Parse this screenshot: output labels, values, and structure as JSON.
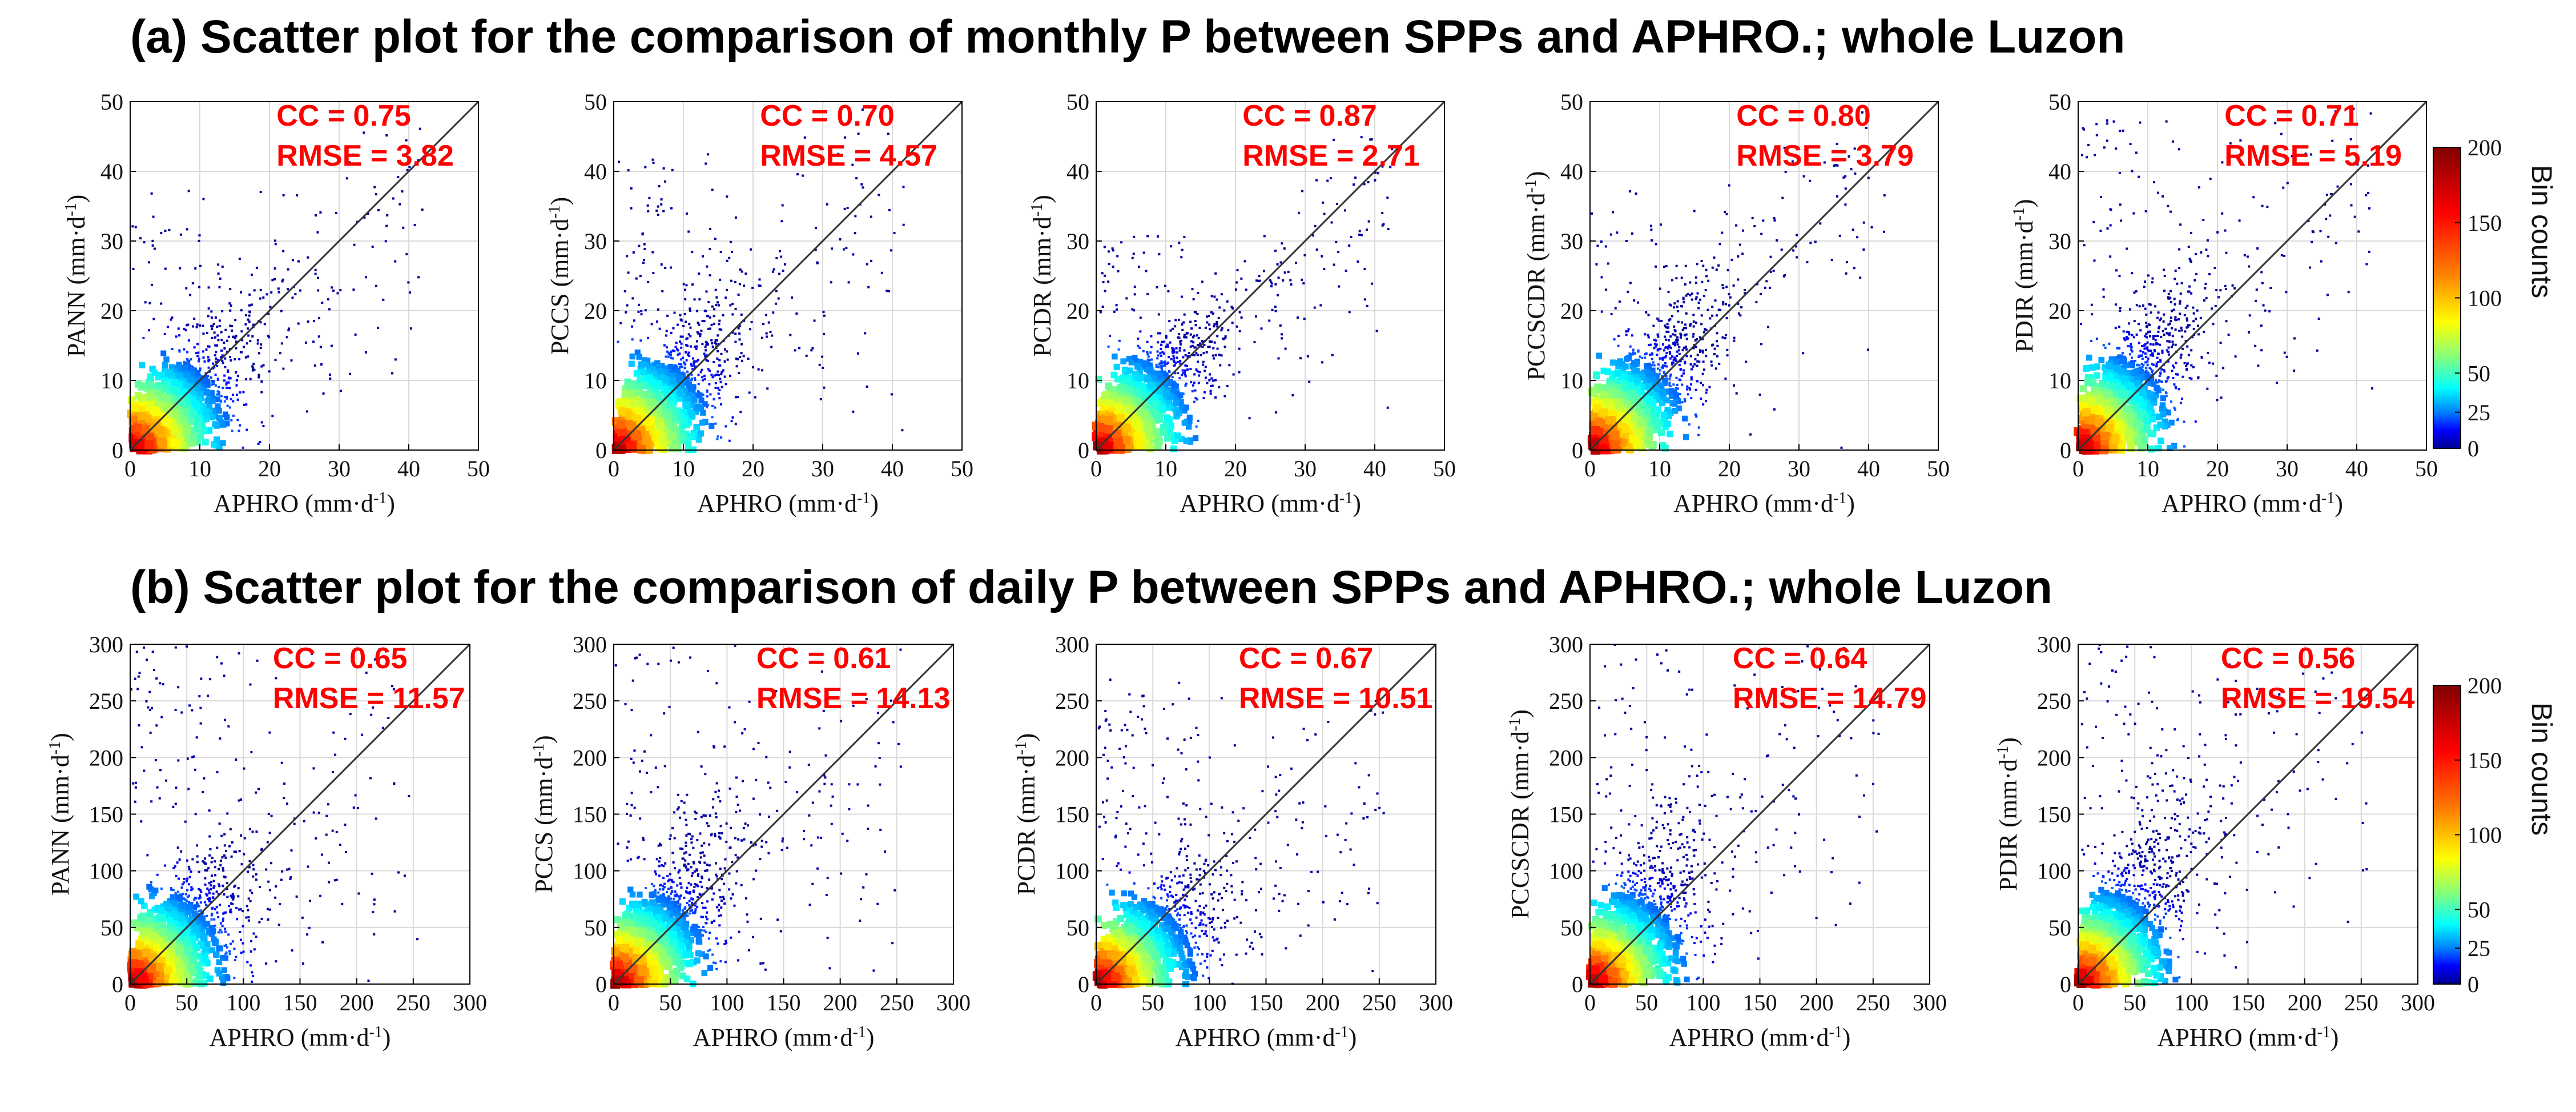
{
  "figure": {
    "panel_a_title": "(a) Scatter plot for the comparison of monthly P between SPPs and APHRO.; whole Luzon",
    "panel_b_title": "(b) Scatter plot for the comparison of daily P between SPPs and APHRO.; whole Luzon"
  },
  "chart_data": [
    {
      "type": "heatmap",
      "row": "a",
      "kind": "density-scatter",
      "xlabel": "APHRO (mm·d-1)",
      "ylabel": "PANN (mm·d-1)",
      "xlim": [
        0,
        50
      ],
      "ylim": [
        0,
        50
      ],
      "xticks": [
        0,
        10,
        20,
        30,
        40,
        50
      ],
      "yticks": [
        0,
        10,
        20,
        30,
        40,
        50
      ],
      "cc_text": "CC = 0.75",
      "rmse_text": "RMSE = 3.82",
      "cc": 0.75,
      "rmse": 3.82,
      "spread": 0.35,
      "slope": 0.85,
      "maxv": 50
    },
    {
      "type": "heatmap",
      "row": "a",
      "kind": "density-scatter",
      "xlabel": "APHRO (mm·d-1)",
      "ylabel": "PCCS (mm·d-1)",
      "xlim": [
        0,
        50
      ],
      "ylim": [
        0,
        50
      ],
      "xticks": [
        0,
        10,
        20,
        30,
        40,
        50
      ],
      "yticks": [
        0,
        10,
        20,
        30,
        40,
        50
      ],
      "cc_text": "CC = 0.70",
      "rmse_text": "RMSE = 4.57",
      "cc": 0.7,
      "rmse": 4.57,
      "spread": 0.45,
      "slope": 0.95,
      "maxv": 50
    },
    {
      "type": "heatmap",
      "row": "a",
      "kind": "density-scatter",
      "xlabel": "APHRO (mm·d-1)",
      "ylabel": "PCDR (mm·d-1)",
      "xlim": [
        0,
        50
      ],
      "ylim": [
        0,
        50
      ],
      "xticks": [
        0,
        10,
        20,
        30,
        40,
        50
      ],
      "yticks": [
        0,
        10,
        20,
        30,
        40,
        50
      ],
      "cc_text": "CC = 0.87",
      "rmse_text": "RMSE = 2.71",
      "cc": 0.87,
      "rmse": 2.71,
      "spread": 0.22,
      "slope": 0.9,
      "maxv": 50
    },
    {
      "type": "heatmap",
      "row": "a",
      "kind": "density-scatter",
      "xlabel": "APHRO (mm·d-1)",
      "ylabel": "PCCSCDR (mm·d-1)",
      "xlim": [
        0,
        50
      ],
      "ylim": [
        0,
        50
      ],
      "xticks": [
        0,
        10,
        20,
        30,
        40,
        50
      ],
      "yticks": [
        0,
        10,
        20,
        30,
        40,
        50
      ],
      "cc_text": "CC = 0.80",
      "rmse_text": "RMSE = 3.79",
      "cc": 0.8,
      "rmse": 3.79,
      "spread": 0.35,
      "slope": 1.0,
      "maxv": 50
    },
    {
      "type": "heatmap",
      "row": "a",
      "kind": "density-scatter",
      "xlabel": "APHRO (mm·d-1)",
      "ylabel": "PDIR (mm·d-1)",
      "xlim": [
        0,
        50
      ],
      "ylim": [
        0,
        50
      ],
      "xticks": [
        0,
        10,
        20,
        30,
        40,
        50
      ],
      "yticks": [
        0,
        10,
        20,
        30,
        40,
        50
      ],
      "cc_text": "CC = 0.71",
      "rmse_text": "RMSE = 5.19",
      "cc": 0.71,
      "rmse": 5.19,
      "spread": 0.55,
      "slope": 1.05,
      "maxv": 50
    },
    {
      "type": "heatmap",
      "row": "b",
      "kind": "density-scatter",
      "xlabel": "APHRO (mm·d-1)",
      "ylabel": "PANN (mm·d-1)",
      "xlim": [
        0,
        300
      ],
      "ylim": [
        0,
        300
      ],
      "xticks": [
        0,
        50,
        100,
        150,
        200,
        250,
        300
      ],
      "yticks": [
        0,
        50,
        100,
        150,
        200,
        250,
        300
      ],
      "cc_text": "CC = 0.65",
      "rmse_text": "RMSE = 11.57",
      "cc": 0.65,
      "rmse": 11.57,
      "spread": 0.6,
      "slope": 0.8,
      "maxv": 300
    },
    {
      "type": "heatmap",
      "row": "b",
      "kind": "density-scatter",
      "xlabel": "APHRO (mm·d-1)",
      "ylabel": "PCCS (mm·d-1)",
      "xlim": [
        0,
        300
      ],
      "ylim": [
        0,
        300
      ],
      "xticks": [
        0,
        50,
        100,
        150,
        200,
        250,
        300
      ],
      "yticks": [
        0,
        50,
        100,
        150,
        200,
        250,
        300
      ],
      "cc_text": "CC = 0.61",
      "rmse_text": "RMSE = 14.13",
      "cc": 0.61,
      "rmse": 14.13,
      "spread": 0.75,
      "slope": 1.0,
      "maxv": 300
    },
    {
      "type": "heatmap",
      "row": "b",
      "kind": "density-scatter",
      "xlabel": "APHRO (mm·d-1)",
      "ylabel": "PCDR (mm·d-1)",
      "xlim": [
        0,
        300
      ],
      "ylim": [
        0,
        300
      ],
      "xticks": [
        0,
        50,
        100,
        150,
        200,
        250,
        300
      ],
      "yticks": [
        0,
        50,
        100,
        150,
        200,
        250,
        300
      ],
      "cc_text": "CC = 0.67",
      "rmse_text": "RMSE = 10.51",
      "cc": 0.67,
      "rmse": 10.51,
      "spread": 0.5,
      "slope": 0.6,
      "maxv": 300
    },
    {
      "type": "heatmap",
      "row": "b",
      "kind": "density-scatter",
      "xlabel": "APHRO (mm·d-1)",
      "ylabel": "PCCSCDR (mm·d-1)",
      "xlim": [
        0,
        300
      ],
      "ylim": [
        0,
        300
      ],
      "xticks": [
        0,
        50,
        100,
        150,
        200,
        250,
        300
      ],
      "yticks": [
        0,
        50,
        100,
        150,
        200,
        250,
        300
      ],
      "cc_text": "CC = 0.64",
      "rmse_text": "RMSE = 14.79",
      "cc": 0.64,
      "rmse": 14.79,
      "spread": 0.75,
      "slope": 1.0,
      "maxv": 300
    },
    {
      "type": "heatmap",
      "row": "b",
      "kind": "density-scatter",
      "xlabel": "APHRO (mm·d-1)",
      "ylabel": "PDIR (mm·d-1)",
      "xlim": [
        0,
        300
      ],
      "ylim": [
        0,
        300
      ],
      "xticks": [
        0,
        50,
        100,
        150,
        200,
        250,
        300
      ],
      "yticks": [
        0,
        50,
        100,
        150,
        200,
        250,
        300
      ],
      "cc_text": "CC = 0.56",
      "rmse_text": "RMSE = 19.54",
      "cc": 0.56,
      "rmse": 19.54,
      "spread": 0.95,
      "slope": 1.1,
      "maxv": 300
    }
  ],
  "colorbars": [
    {
      "row": "a",
      "label": "Bin counts",
      "ticks": [
        0,
        25,
        50,
        100,
        150,
        200
      ],
      "range": [
        0,
        200
      ]
    },
    {
      "row": "b",
      "label": "Bin counts",
      "ticks": [
        0,
        25,
        50,
        100,
        150,
        200
      ],
      "range": [
        0,
        200
      ]
    }
  ],
  "colormap": [
    "#00008f",
    "#0000ff",
    "#0080ff",
    "#00ffff",
    "#80ff80",
    "#ffff00",
    "#ff8000",
    "#ff0000",
    "#800000"
  ]
}
